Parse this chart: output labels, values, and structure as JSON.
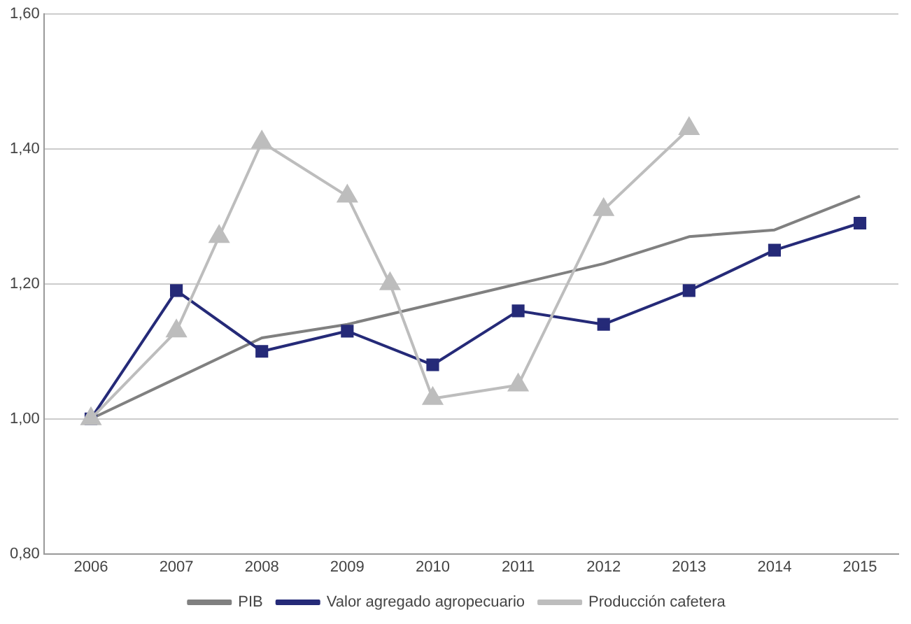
{
  "chart_data": {
    "type": "line",
    "xlim": [
      2005.45,
      2015.45
    ],
    "xticks": [
      2006,
      2007,
      2008,
      2009,
      2010,
      2011,
      2012,
      2013,
      2014,
      2015
    ],
    "ylim": [
      0.8,
      1.6
    ],
    "yticks": [
      {
        "value": 0.8,
        "label": "0,80"
      },
      {
        "value": 1.0,
        "label": "1,00"
      },
      {
        "value": 1.2,
        "label": "1,20"
      },
      {
        "value": 1.4,
        "label": "1,40"
      },
      {
        "value": 1.6,
        "label": "1,60"
      }
    ],
    "grid": "y",
    "legend": "bottom",
    "series": [
      {
        "name": "PIB",
        "color": "#808080",
        "marker": "none",
        "x": [
          2006,
          2007,
          2008,
          2009,
          2010,
          2011,
          2012,
          2013,
          2014,
          2015
        ],
        "values": [
          1.0,
          1.06,
          1.12,
          1.14,
          1.17,
          1.2,
          1.23,
          1.27,
          1.28,
          1.33
        ]
      },
      {
        "name": "Valor agregado agropecuario",
        "color": "#252a78",
        "marker": "square",
        "x": [
          2006,
          2007,
          2008,
          2009,
          2010,
          2011,
          2012,
          2013,
          2014,
          2015
        ],
        "values": [
          1.0,
          1.19,
          1.1,
          1.13,
          1.08,
          1.16,
          1.14,
          1.19,
          1.25,
          1.29
        ]
      },
      {
        "name": "Producción cafetera",
        "color": "#bdbdbd",
        "marker": "triangle",
        "x": [
          2006,
          2007,
          2007.5,
          2008,
          2009,
          2009.5,
          2010,
          2011,
          2012,
          2013
        ],
        "values": [
          1.0,
          1.13,
          1.27,
          1.41,
          1.33,
          1.2,
          1.03,
          1.05,
          1.31,
          1.43
        ]
      }
    ]
  }
}
